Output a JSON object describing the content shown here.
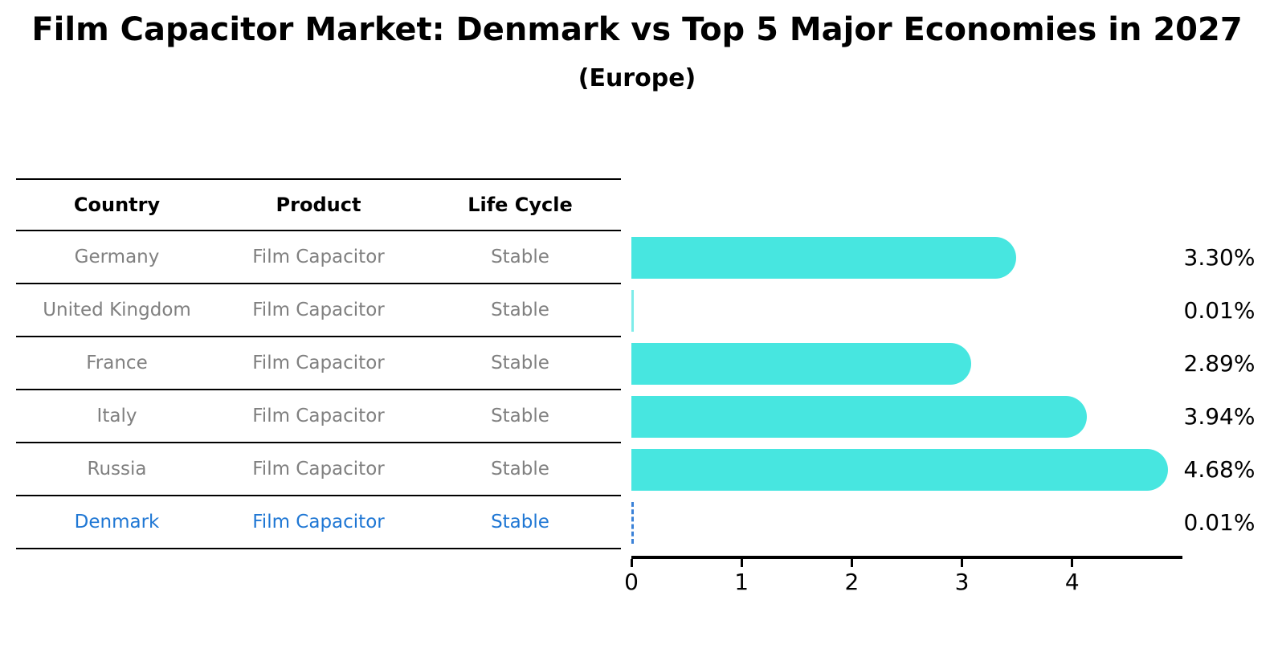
{
  "title": "Film Capacitor Market: Denmark vs Top 5 Major Economies in 2027",
  "subtitle": "(Europe)",
  "table": {
    "headers": [
      "Country",
      "Product",
      "Life Cycle"
    ],
    "rows": [
      {
        "country": "Germany",
        "product": "Film Capacitor",
        "life_cycle": "Stable",
        "highlighted": false
      },
      {
        "country": "United Kingdom",
        "product": "Film Capacitor",
        "life_cycle": "Stable",
        "highlighted": false
      },
      {
        "country": "France",
        "product": "Film Capacitor",
        "life_cycle": "Stable",
        "highlighted": false
      },
      {
        "country": "Italy",
        "product": "Film Capacitor",
        "life_cycle": "Stable",
        "highlighted": false
      },
      {
        "country": "Russia",
        "product": "Film Capacitor",
        "life_cycle": "Stable",
        "highlighted": true
      }
    ],
    "highlight_row": {
      "country": "Denmark",
      "product": "Film Capacitor",
      "life_cycle": "Stable"
    }
  },
  "chart_data": {
    "type": "bar",
    "orientation": "horizontal",
    "title": "Film Capacitor Market: Denmark vs Top 5 Major Economies in 2027",
    "subtitle": "(Europe)",
    "categories": [
      "Germany",
      "United Kingdom",
      "France",
      "Italy",
      "Russia",
      "Denmark"
    ],
    "values": [
      3.3,
      0.01,
      2.89,
      3.94,
      4.68,
      0.01
    ],
    "value_labels": [
      "3.30%",
      "0.01%",
      "2.89%",
      "3.94%",
      "4.68%",
      "0.01%"
    ],
    "bar_styles": [
      "solid",
      "solid",
      "solid",
      "solid",
      "solid",
      "dashed"
    ],
    "xticks": [
      0,
      1,
      2,
      3,
      4
    ],
    "xlim": [
      0,
      5
    ],
    "grid": false,
    "legend": false,
    "bar_color": "#47e6e0",
    "highlight_color": "#1f77d4"
  }
}
